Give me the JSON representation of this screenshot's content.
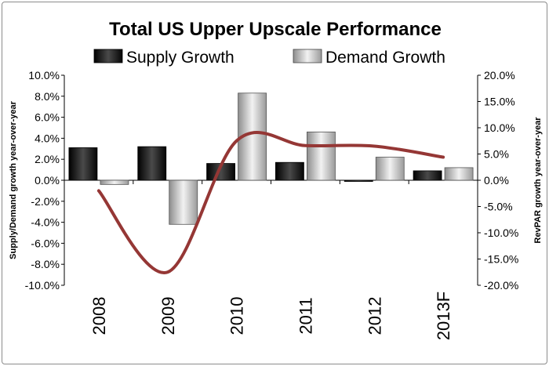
{
  "chart_data": {
    "type": "bar",
    "title": "Total US Upper Upscale Performance",
    "categories": [
      "2008",
      "2009",
      "2010",
      "2011",
      "2012",
      "2013F"
    ],
    "series": [
      {
        "name": "Supply Growth",
        "axis": "left",
        "values": [
          3.1,
          3.2,
          1.6,
          1.7,
          -0.1,
          0.9
        ],
        "color": "#1a1a1a"
      },
      {
        "name": "Demand Growth",
        "axis": "left",
        "values": [
          -0.4,
          -4.2,
          8.3,
          4.6,
          2.2,
          1.2
        ],
        "color": "#b5b5b5"
      },
      {
        "name": "RevPAR Growth",
        "axis": "right",
        "type": "line",
        "values": [
          -2.0,
          -17.5,
          7.5,
          6.6,
          6.5,
          4.4
        ],
        "color": "#953735"
      }
    ],
    "ylabel_left": "Supply/Demand growth year-over-year",
    "ylabel_right": "RevPAR growth year-over-year",
    "ylim_left": [
      -10,
      10
    ],
    "ylim_right": [
      -20,
      20
    ],
    "yticks_left": [
      "10.0%",
      "8.0%",
      "6.0%",
      "4.0%",
      "2.0%",
      "0.0%",
      "-2.0%",
      "-4.0%",
      "-6.0%",
      "-8.0%",
      "-10.0%"
    ],
    "yticks_right": [
      "20.0%",
      "15.0%",
      "10.0%",
      "5.0%",
      "0.0%",
      "-5.0%",
      "-10.0%",
      "-15.0%",
      "-20.0%"
    ],
    "legend": [
      "Supply Growth",
      "Demand Growth"
    ],
    "legend_position": "top",
    "grid": false
  }
}
